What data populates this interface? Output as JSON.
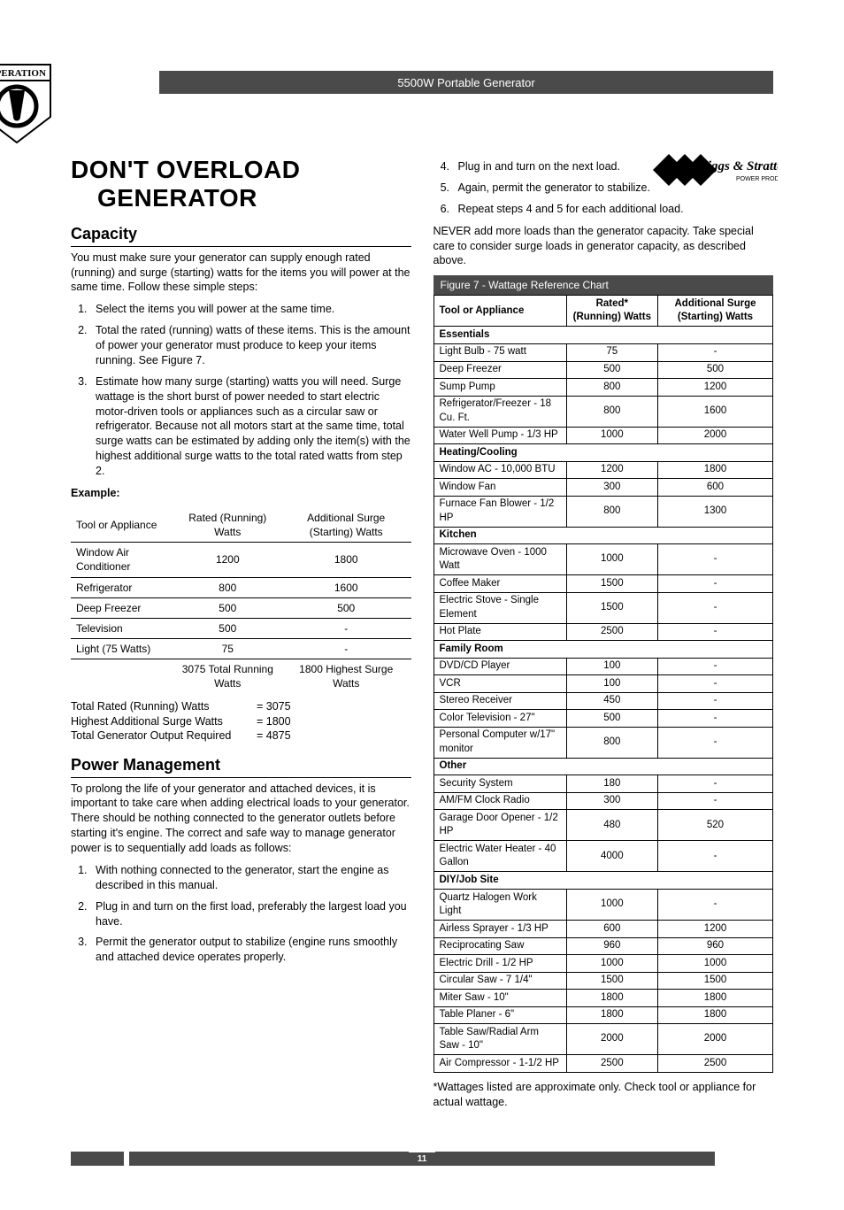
{
  "header": {
    "center_text": "5500W Portable Generator",
    "operation_label": "OPERATION",
    "brand_top": "Briggs & Stratton",
    "brand_bottom": "POWER PRODUCTS"
  },
  "left": {
    "title_l1": "DON'T OVERLOAD",
    "title_l2": "GENERATOR",
    "capacity_heading": "Capacity",
    "capacity_p": "You must make sure your generator can supply enough rated (running) and surge (starting) watts for the items you will power at the same time. Follow these simple steps:",
    "capacity_steps": [
      "Select the items you will power at the same time.",
      "Total the rated (running) watts of these items. This is the amount of power your generator must produce to keep your items running. See Figure 7.",
      "Estimate how many surge (starting) watts you will need. Surge wattage is the short burst of power needed to start electric motor-driven tools or appliances such as a circular saw or refrigerator. Because not all motors start at the same time, total surge watts can be estimated by adding only the item(s) with the highest additional surge watts to the total rated watts from step 2."
    ],
    "example_label": "Example:",
    "example_table": {
      "headers": [
        "Tool or Appliance",
        "Rated (Running) Watts",
        "Additional Surge (Starting) Watts"
      ],
      "rows": [
        [
          "Window Air Conditioner",
          "1200",
          "1800"
        ],
        [
          "Refrigerator",
          "800",
          "1600"
        ],
        [
          "Deep Freezer",
          "500",
          "500"
        ],
        [
          "Television",
          "500",
          "-"
        ],
        [
          "Light (75 Watts)",
          "75",
          "-"
        ]
      ],
      "footer": [
        "",
        "3075 Total Running Watts",
        "1800 Highest Surge Watts"
      ]
    },
    "totals": [
      [
        "Total Rated (Running) Watts",
        "= 3075"
      ],
      [
        "Highest Additional Surge Watts",
        "= 1800"
      ],
      [
        "Total Generator Output Required",
        "= 4875"
      ]
    ],
    "pm_heading": "Power Management",
    "pm_p": "To prolong the life of your generator and attached devices, it is important to take care when adding electrical loads to your generator. There should be nothing connected to the generator outlets before starting it's engine. The correct and safe way to manage generator power is to sequentially add loads as follows:",
    "pm_steps": [
      "With nothing connected to the generator, start the engine as described in this manual.",
      "Plug in and turn on the first load, preferably the largest load you have.",
      "Permit the generator output to stabilize (engine runs smoothly and attached device operates properly."
    ]
  },
  "right": {
    "steps_cont": [
      {
        "n": "4",
        "t": "Plug in and turn on the next load."
      },
      {
        "n": "5",
        "t": "Again, permit the generator to stabilize."
      },
      {
        "n": "6",
        "t": "Repeat steps 4 and 5 for each additional load."
      }
    ],
    "never_p": "NEVER add more loads than the generator capacity. Take special care to consider surge loads in generator capacity, as described above.",
    "figure_caption": "Figure 7 - Wattage Reference Chart",
    "wattage_headers": [
      "Tool or Appliance",
      "Rated* (Running) Watts",
      "Additional Surge (Starting) Watts"
    ],
    "wattage_rows": [
      {
        "type": "section",
        "label": "Essentials"
      },
      {
        "cells": [
          "Light Bulb - 75 watt",
          "75",
          "-"
        ]
      },
      {
        "cells": [
          "Deep Freezer",
          "500",
          "500"
        ]
      },
      {
        "cells": [
          "Sump Pump",
          "800",
          "1200"
        ]
      },
      {
        "cells": [
          "Refrigerator/Freezer - 18 Cu. Ft.",
          "800",
          "1600"
        ]
      },
      {
        "cells": [
          "Water Well Pump - 1/3 HP",
          "1000",
          "2000"
        ]
      },
      {
        "type": "section",
        "label": "Heating/Cooling"
      },
      {
        "cells": [
          "Window AC - 10,000 BTU",
          "1200",
          "1800"
        ]
      },
      {
        "cells": [
          "Window Fan",
          "300",
          "600"
        ]
      },
      {
        "cells": [
          "Furnace Fan Blower - 1/2 HP",
          "800",
          "1300"
        ]
      },
      {
        "type": "section",
        "label": "Kitchen"
      },
      {
        "cells": [
          "Microwave Oven - 1000 Watt",
          "1000",
          "-"
        ]
      },
      {
        "cells": [
          "Coffee Maker",
          "1500",
          "-"
        ]
      },
      {
        "cells": [
          "Electric Stove - Single Element",
          "1500",
          "-"
        ]
      },
      {
        "cells": [
          "Hot Plate",
          "2500",
          "-"
        ]
      },
      {
        "type": "section",
        "label": "Family Room"
      },
      {
        "cells": [
          "DVD/CD Player",
          "100",
          "-"
        ]
      },
      {
        "cells": [
          "VCR",
          "100",
          "-"
        ]
      },
      {
        "cells": [
          "Stereo Receiver",
          "450",
          "-"
        ]
      },
      {
        "cells": [
          "Color Television - 27\"",
          "500",
          "-"
        ]
      },
      {
        "cells": [
          "Personal Computer w/17\" monitor",
          "800",
          "-"
        ]
      },
      {
        "type": "section",
        "label": "Other"
      },
      {
        "cells": [
          "Security System",
          "180",
          "-"
        ]
      },
      {
        "cells": [
          "AM/FM Clock Radio",
          "300",
          "-"
        ]
      },
      {
        "cells": [
          "Garage Door Opener - 1/2 HP",
          "480",
          "520"
        ]
      },
      {
        "cells": [
          "Electric Water Heater - 40 Gallon",
          "4000",
          "-"
        ]
      },
      {
        "type": "section",
        "label": "DIY/Job Site"
      },
      {
        "cells": [
          "Quartz Halogen Work Light",
          "1000",
          "-"
        ]
      },
      {
        "cells": [
          "Airless Sprayer - 1/3 HP",
          "600",
          "1200"
        ]
      },
      {
        "cells": [
          "Reciprocating Saw",
          "960",
          "960"
        ]
      },
      {
        "cells": [
          "Electric Drill - 1/2 HP",
          "1000",
          "1000"
        ]
      },
      {
        "cells": [
          "Circular Saw - 7 1/4\"",
          "1500",
          "1500"
        ]
      },
      {
        "cells": [
          "Miter Saw - 10\"",
          "1800",
          "1800"
        ]
      },
      {
        "cells": [
          "Table Planer - 6\"",
          "1800",
          "1800"
        ]
      },
      {
        "cells": [
          "Table Saw/Radial Arm Saw - 10\"",
          "2000",
          "2000"
        ]
      },
      {
        "cells": [
          "Air Compressor - 1-1/2 HP",
          "2500",
          "2500"
        ]
      }
    ],
    "footnote": "*Wattages listed are approximate only. Check tool or appliance for actual wattage."
  },
  "footer": {
    "page": "11"
  }
}
